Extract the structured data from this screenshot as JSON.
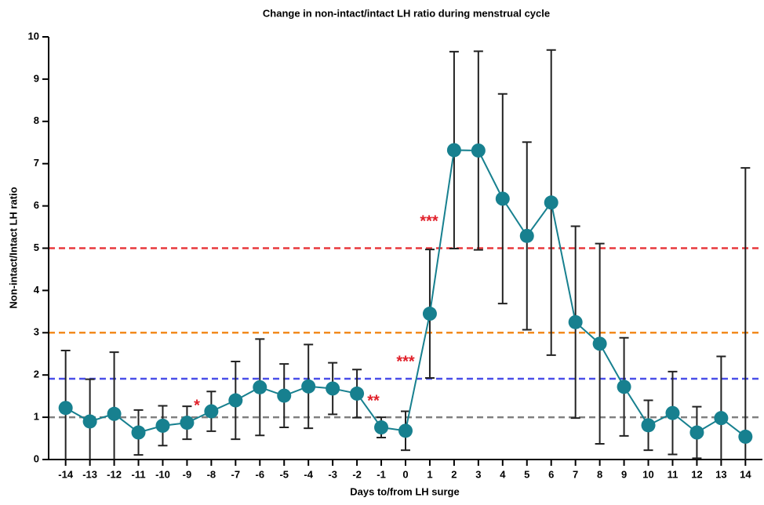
{
  "chart_data": {
    "type": "line",
    "title": "Change in non-intact/intact LH ratio during menstrual cycle",
    "x_label": "Days to/from LH surge",
    "y_label": "Non-intact/Intact  LH ratio",
    "x": [
      -14,
      -13,
      -12,
      -11,
      -10,
      -9,
      -8,
      -7,
      -6,
      -5,
      -4,
      -3,
      -2,
      -1,
      0,
      1,
      2,
      3,
      4,
      5,
      6,
      7,
      8,
      9,
      10,
      11,
      12,
      13,
      14
    ],
    "series": [
      {
        "color": "#17808f",
        "values": [
          1.22,
          0.9,
          1.08,
          0.64,
          0.8,
          0.87,
          1.14,
          1.4,
          1.71,
          1.51,
          1.73,
          1.68,
          1.56,
          0.76,
          0.68,
          3.45,
          7.32,
          7.31,
          6.17,
          5.29,
          6.08,
          3.25,
          2.74,
          1.72,
          0.81,
          1.1,
          0.64,
          0.98,
          0.54
        ],
        "errors": [
          1.36,
          1.0,
          1.46,
          0.53,
          0.47,
          0.39,
          0.47,
          0.92,
          1.14,
          0.75,
          0.99,
          0.61,
          0.57,
          0.24,
          0.46,
          1.52,
          2.33,
          2.35,
          2.48,
          2.22,
          3.61,
          2.27,
          2.37,
          1.16,
          0.59,
          0.98,
          0.61,
          1.46,
          6.36
        ]
      }
    ],
    "reference_lines": [
      {
        "value": 5,
        "color": "#e8383d"
      },
      {
        "value": 3,
        "color": "#f28a1e"
      },
      {
        "value": 1.91,
        "color": "#4a4fe8"
      },
      {
        "value": 1,
        "color": "#808080"
      }
    ],
    "annotations": [
      "*",
      "**",
      "***",
      "***"
    ],
    "annotation_color": "#e0202a",
    "xlim": [
      -14.7,
      14.7
    ],
    "xticks": [
      -14,
      -13,
      -12,
      -11,
      -10,
      -9,
      -8,
      -7,
      -6,
      -5,
      -4,
      -3,
      -2,
      -1,
      0,
      1,
      2,
      3,
      4,
      5,
      6,
      7,
      8,
      9,
      10,
      11,
      12,
      13,
      14
    ],
    "ylim": [
      0,
      10
    ],
    "yticks": [
      0,
      1,
      2,
      3,
      4,
      5,
      6,
      7,
      8,
      9,
      10
    ]
  }
}
